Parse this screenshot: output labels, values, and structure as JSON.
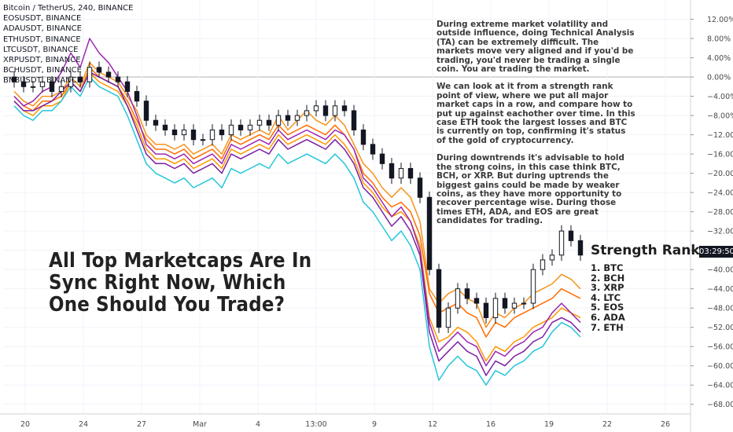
{
  "legend": {
    "lines": [
      "Bitcoin / TetherUS, 240, BINANCE",
      "EOSUSDT, BINANCE",
      "ADAUSDT, BINANCE",
      "ETHUSDT, BINANCE",
      "LTCUSDT, BINANCE",
      "XRPUSDT, BINANCE",
      "BCHUSDT, BINANCE",
      "BNBUSDT, BINANCE"
    ]
  },
  "annotation": {
    "p1": "During extreme market volatility and outside influence, doing Technical Analysis (TA) can be extremely difficult. The markets move very aligned and if you'd be trading, you'd never be trading a single coin. You are trading the market.",
    "p2": "We can look at it from a strength rank point of view, where we put all major market caps in a row, and compare how to put up against eachother over time. In this case ETH took the largest losses and BTC is currently on top, confirming it's status of the gold of cryptocurrency.",
    "p3": "During downtrends it's advisable to hold the strong coins, in this case think BTC, BCH, or XRP. But during uptrends the biggest gains could be made by weaker coins, as they have more opportunity to recover percentage wise. During those times ETH, ADA, and EOS are great candidates for trading."
  },
  "headline": "All Top Marketcaps Are In Sync Right Now, Which One Should You Trade?",
  "strength_rank": {
    "title": "Strength Rank",
    "items": [
      "1. BTC",
      "2. BCH",
      "3. XRP",
      "4. LTC",
      "5. EOS",
      "6. ADA",
      "7. ETH"
    ]
  },
  "price_tag": "03:29:50",
  "chart_data": {
    "type": "line",
    "y_unit": "% change",
    "ylim": [
      -70,
      16
    ],
    "yticks": [
      12,
      8,
      4,
      0,
      -4,
      -8,
      -12,
      -16,
      -20,
      -24,
      -28,
      -32,
      -36,
      -40,
      -44,
      -48,
      -52,
      -56,
      -60,
      -64,
      -68
    ],
    "ytick_labels": [
      "12.00%",
      "8.00%",
      "4.00%",
      "0.00%",
      "−4.00%",
      "−8.00%",
      "−12.00%",
      "−16.00%",
      "−20.00%",
      "−24.00%",
      "−28.00%",
      "−32.00%",
      "−36.00%",
      "−40.00%",
      "−44.00%",
      "−48.00%",
      "−52.00%",
      "−56.00%",
      "−60.00%",
      "−64.00%",
      "−68.00%"
    ],
    "x_ticks": [
      "20",
      "24",
      "27",
      "Mar",
      "4",
      "13:00",
      "9",
      "12",
      "16",
      "19",
      "22",
      "26"
    ],
    "colors": {
      "grid": "#f0f3fa",
      "zero_line": "#b0b0b0",
      "up": "#131722",
      "down": "#131722",
      "axis_text": "#4a4a4a"
    },
    "series": [
      {
        "name": "BTCUSDT",
        "type": "candles",
        "values": [
          -1,
          -2,
          -2,
          -1,
          -3,
          -2,
          0,
          -1,
          2,
          1,
          0,
          -1,
          -3,
          -5,
          -9,
          -10,
          -11,
          -12,
          -11,
          -13,
          -13,
          -11,
          -12,
          -10,
          -11,
          -10,
          -9,
          -10,
          -8,
          -9,
          -8,
          -7,
          -6,
          -8,
          -6,
          -7,
          -11,
          -14,
          -16,
          -18,
          -21,
          -19,
          -21,
          -25,
          -40,
          -52,
          -48,
          -44,
          -46,
          -47,
          -50,
          -46,
          -48,
          -47,
          -47,
          -40,
          -38,
          -37,
          -32,
          -34,
          -37
        ]
      },
      {
        "name": "BCHUSDT",
        "color": "#f7931a",
        "values": [
          -3,
          -5,
          -6,
          -4,
          -4,
          -3,
          0,
          -2,
          3,
          1,
          0,
          -1,
          -4,
          -7,
          -12,
          -14,
          -14,
          -15,
          -14,
          -16,
          -15,
          -14,
          -16,
          -12,
          -13,
          -12,
          -11,
          -12,
          -8,
          -11,
          -9,
          -7,
          -9,
          -10,
          -8,
          -10,
          -14,
          -18,
          -20,
          -23,
          -25,
          -23,
          -25,
          -30,
          -44,
          -47,
          -45,
          -44,
          -46,
          -47,
          -52,
          -49,
          -50,
          -48,
          -47,
          -45,
          -44,
          -43,
          -41,
          -42,
          -44
        ]
      },
      {
        "name": "XRPUSDT",
        "color": "#ff6d00",
        "values": [
          -4,
          -6,
          -7,
          -5,
          -5,
          -4,
          -1,
          -3,
          2,
          0,
          -1,
          -2,
          -5,
          -9,
          -13,
          -15,
          -15,
          -16,
          -15,
          -17,
          -16,
          -15,
          -17,
          -13,
          -14,
          -13,
          -12,
          -13,
          -10,
          -12,
          -11,
          -10,
          -11,
          -12,
          -10,
          -12,
          -15,
          -20,
          -22,
          -25,
          -27,
          -26,
          -28,
          -33,
          -45,
          -49,
          -48,
          -47,
          -49,
          -50,
          -54,
          -51,
          -52,
          -50,
          -49,
          -48,
          -47,
          -46,
          -44,
          -45,
          -46
        ]
      },
      {
        "name": "LTCUSDT",
        "color": "#ff9800",
        "values": [
          -5,
          -7,
          -8,
          -6,
          -6,
          -5,
          -1,
          -3,
          1,
          -1,
          -2,
          -3,
          -6,
          -10,
          -15,
          -17,
          -17,
          -18,
          -17,
          -19,
          -18,
          -17,
          -19,
          -15,
          -16,
          -15,
          -14,
          -15,
          -12,
          -14,
          -13,
          -12,
          -13,
          -14,
          -12,
          -14,
          -17,
          -22,
          -24,
          -27,
          -29,
          -28,
          -30,
          -35,
          -50,
          -55,
          -54,
          -52,
          -53,
          -55,
          -59,
          -56,
          -57,
          -55,
          -54,
          -52,
          -51,
          -50,
          -48,
          -49,
          -50
        ]
      },
      {
        "name": "EOSUSDT",
        "color": "#9c27b0",
        "values": [
          -4,
          -6,
          -5,
          -3,
          -2,
          1,
          5,
          2,
          8,
          5,
          3,
          0,
          -3,
          -8,
          -14,
          -16,
          -16,
          -17,
          -16,
          -18,
          -17,
          -16,
          -18,
          -14,
          -15,
          -14,
          -13,
          -14,
          -11,
          -13,
          -12,
          -11,
          -12,
          -13,
          -11,
          -12,
          -15,
          -21,
          -23,
          -26,
          -29,
          -27,
          -30,
          -36,
          -51,
          -57,
          -55,
          -53,
          -55,
          -56,
          -60,
          -57,
          -58,
          -56,
          -55,
          -53,
          -52,
          -49,
          -47,
          -49,
          -51
        ]
      },
      {
        "name": "ADAUSDT",
        "color": "#7b1fa2",
        "values": [
          -5,
          -7,
          -7,
          -6,
          -5,
          -3,
          -1,
          -3,
          1,
          0,
          -1,
          -2,
          -6,
          -11,
          -16,
          -18,
          -18,
          -19,
          -18,
          -20,
          -19,
          -18,
          -20,
          -16,
          -17,
          -16,
          -15,
          -16,
          -13,
          -15,
          -14,
          -13,
          -14,
          -15,
          -13,
          -15,
          -18,
          -23,
          -25,
          -28,
          -31,
          -29,
          -32,
          -37,
          -53,
          -59,
          -57,
          -55,
          -57,
          -58,
          -62,
          -59,
          -60,
          -58,
          -57,
          -55,
          -54,
          -51,
          -50,
          -51,
          -53
        ]
      },
      {
        "name": "ETHUSDT",
        "color": "#26c6da",
        "values": [
          -6,
          -8,
          -9,
          -7,
          -7,
          -5,
          -2,
          -4,
          0,
          -2,
          -3,
          -4,
          -8,
          -13,
          -18,
          -20,
          -21,
          -22,
          -21,
          -23,
          -22,
          -21,
          -23,
          -19,
          -20,
          -19,
          -18,
          -19,
          -16,
          -18,
          -17,
          -16,
          -17,
          -18,
          -16,
          -18,
          -21,
          -26,
          -28,
          -31,
          -34,
          -32,
          -35,
          -40,
          -56,
          -63,
          -60,
          -58,
          -60,
          -61,
          -64,
          -61,
          -62,
          -60,
          -59,
          -57,
          -56,
          -53,
          -51,
          -52,
          -54
        ]
      }
    ]
  }
}
